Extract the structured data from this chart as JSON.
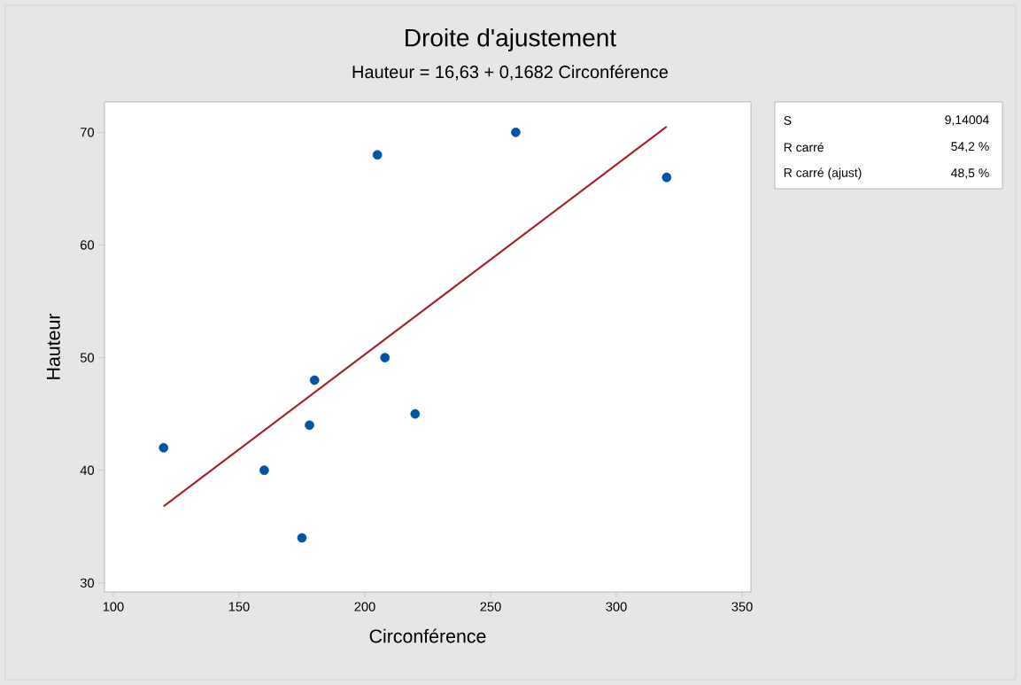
{
  "chart_data": {
    "type": "scatter",
    "title": "Droite d'ajustement",
    "subtitle": "Hauteur = 16,63 + 0,1682 Circonférence",
    "xlabel": "Circonférence",
    "ylabel": "Hauteur",
    "xlim": [
      96.5,
      353.5
    ],
    "ylim": [
      29.2,
      72.7
    ],
    "xticks": [
      100,
      150,
      200,
      250,
      300,
      350
    ],
    "yticks": [
      30,
      40,
      50,
      60,
      70
    ],
    "series": [
      {
        "color": "#0054a6",
        "marker": "circle",
        "x": [
          120,
          160,
          175,
          178,
          180,
          205,
          208,
          220,
          260,
          320
        ],
        "values": [
          42,
          40,
          34,
          44,
          48,
          68,
          50,
          45,
          70,
          66
        ]
      },
      {
        "type": "line",
        "color": "#a6222a",
        "marker": "none",
        "x": [
          120,
          320
        ],
        "values": [
          36.8,
          70.5
        ]
      }
    ],
    "annotations": [
      "S",
      "9,14004",
      "R carré",
      "54,2 %",
      "R carré (ajust)",
      "48,5 %"
    ]
  }
}
